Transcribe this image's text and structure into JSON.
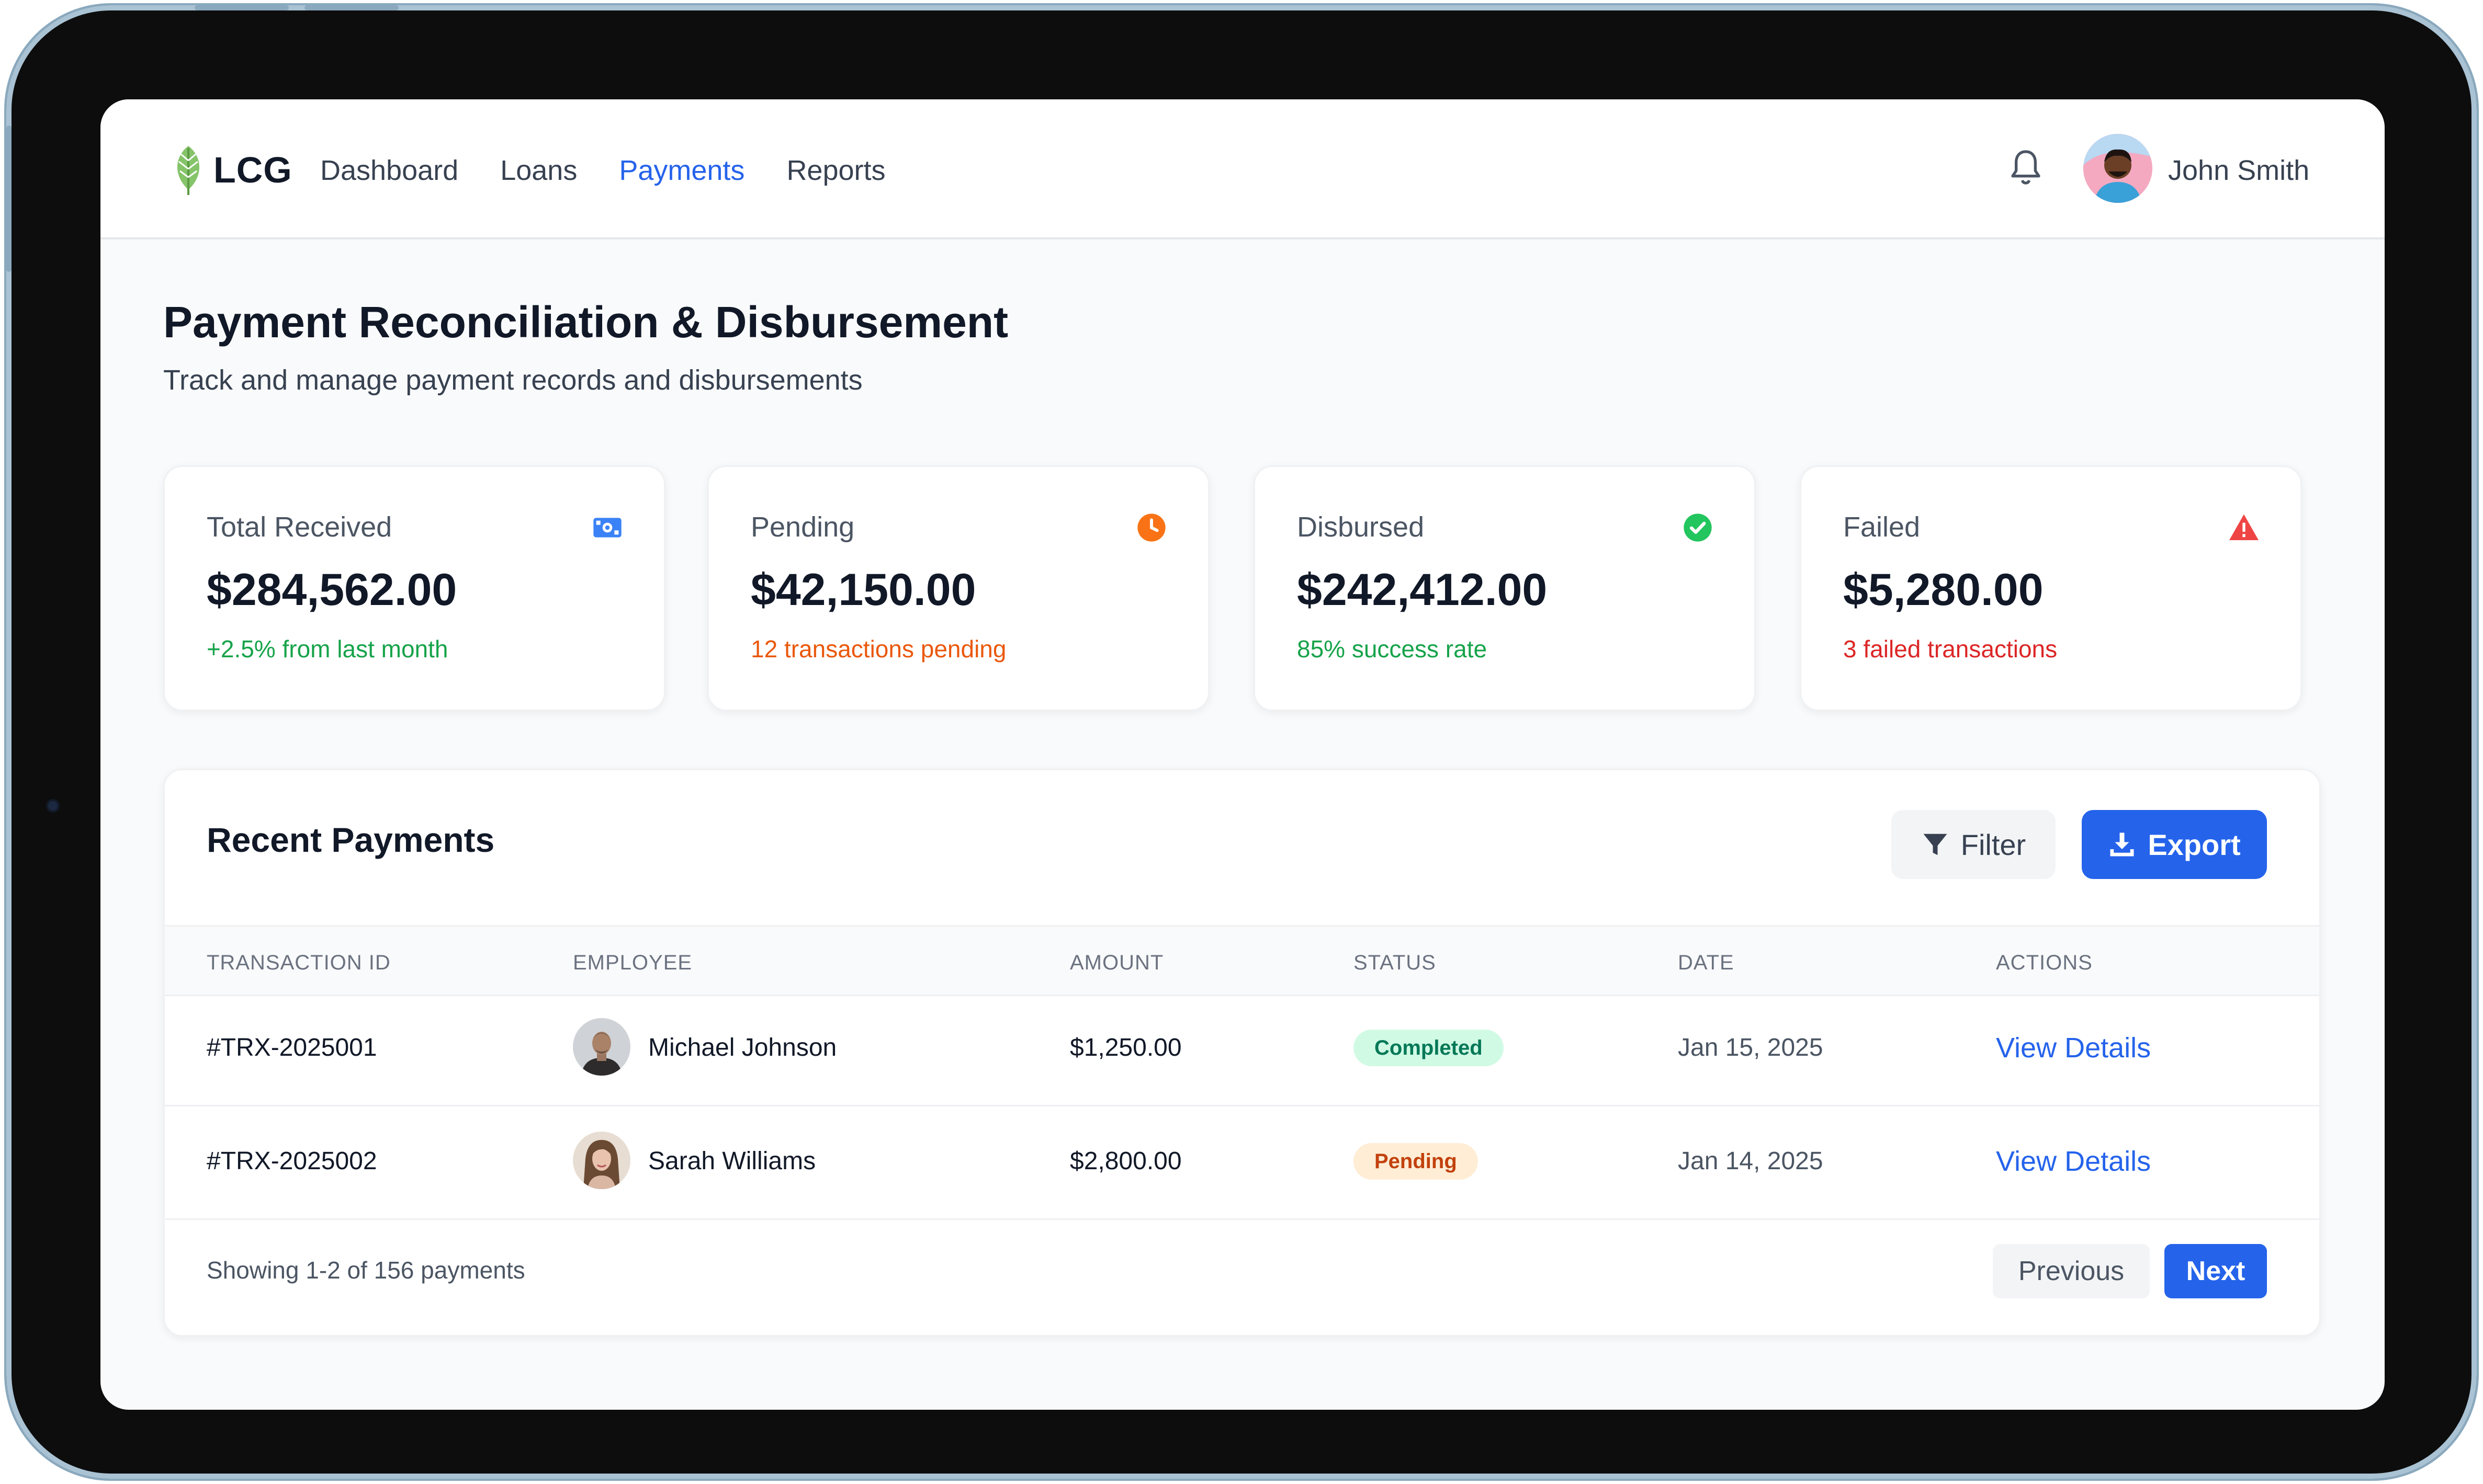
{
  "brand": {
    "name": "LCG",
    "accent": "#2563eb"
  },
  "nav": {
    "links": [
      "Dashboard",
      "Loans",
      "Payments",
      "Reports"
    ],
    "active": "Payments"
  },
  "user": {
    "name": "John Smith"
  },
  "header": {
    "title": "Payment Reconciliation & Disbursement",
    "subtitle": "Track and manage payment records and disbursements"
  },
  "stats": [
    {
      "label": "Total Received",
      "value": "$284,562.00",
      "note": "+2.5% from last month",
      "icon": "money-bill-icon",
      "color": "#16a34a"
    },
    {
      "label": "Pending",
      "value": "$42,150.00",
      "note": "12 transactions pending",
      "icon": "clock-icon",
      "color": "#ea580c"
    },
    {
      "label": "Disbursed",
      "value": "$242,412.00",
      "note": "85% success rate",
      "icon": "check-circle-icon",
      "color": "#16a34a"
    },
    {
      "label": "Failed",
      "value": "$5,280.00",
      "note": "3 failed transactions",
      "icon": "warning-icon",
      "color": "#dc2626"
    }
  ],
  "payments": {
    "title": "Recent Payments",
    "filter_label": "Filter",
    "export_label": "Export",
    "columns": [
      "TRANSACTION ID",
      "EMPLOYEE",
      "AMOUNT",
      "STATUS",
      "DATE",
      "ACTIONS"
    ],
    "rows": [
      {
        "id": "#TRX-2025001",
        "employee": "Michael Johnson",
        "amount": "$1,250.00",
        "status": "Completed",
        "date": "Jan 15, 2025",
        "action": "View Details"
      },
      {
        "id": "#TRX-2025002",
        "employee": "Sarah Williams",
        "amount": "$2,800.00",
        "status": "Pending",
        "date": "Jan 14, 2025",
        "action": "View Details"
      }
    ],
    "showing": "Showing 1-2 of 156 payments",
    "prev_label": "Previous",
    "next_label": "Next"
  }
}
